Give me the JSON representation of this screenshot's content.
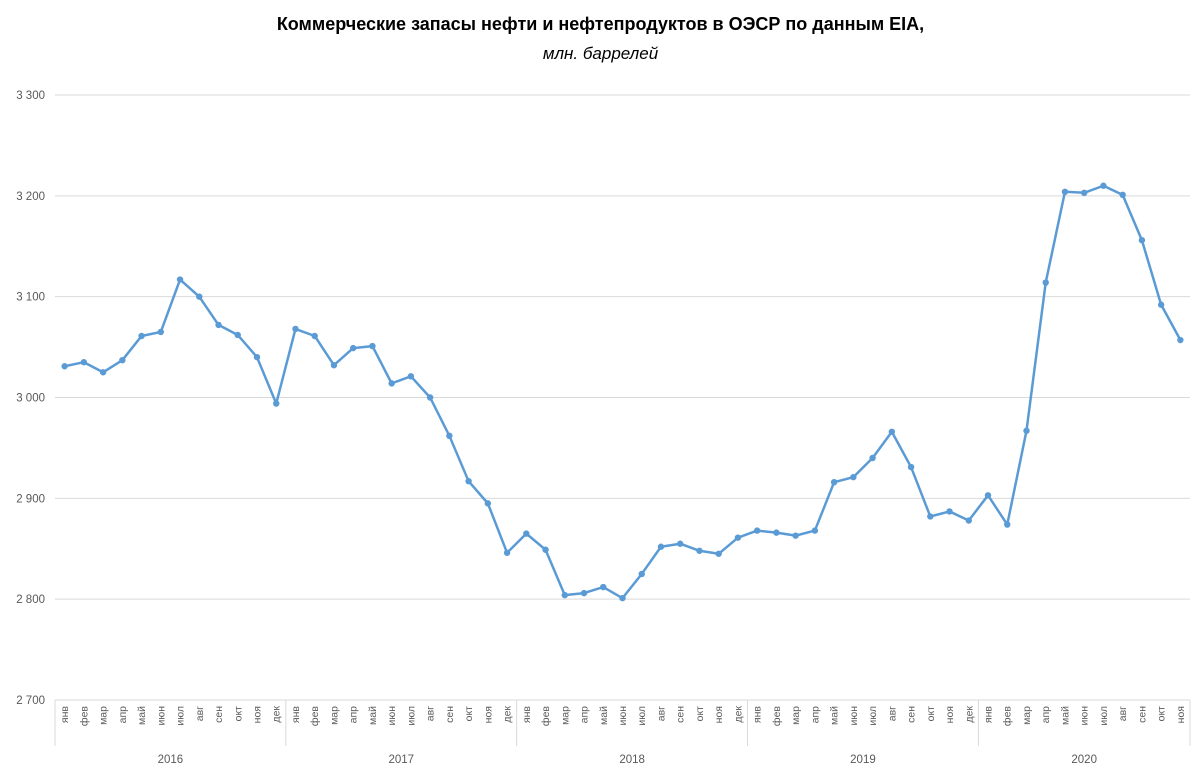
{
  "title": "Коммерческие запасы нефти и нефтепродуктов в ОЭСР по данным EIA,",
  "subtitle": "млн. баррелей",
  "chart_data": {
    "type": "line",
    "title": "Коммерческие запасы нефти и нефтепродуктов в ОЭСР по данным EIA, млн. баррелей",
    "xlabel": "",
    "ylabel": "",
    "ylim": [
      2700,
      3300
    ],
    "grid": true,
    "legend": "none",
    "month_labels": [
      "янв",
      "фев",
      "мар",
      "апр",
      "май",
      "июн",
      "июл",
      "авг",
      "сен",
      "окт",
      "ноя",
      "дек"
    ],
    "years": [
      {
        "label": "2016",
        "months": 12
      },
      {
        "label": "2017",
        "months": 12
      },
      {
        "label": "2018",
        "months": 12
      },
      {
        "label": "2019",
        "months": 12
      },
      {
        "label": "2020",
        "months": 11
      }
    ],
    "ytick_values": [
      2700,
      2800,
      2900,
      3000,
      3100,
      3200,
      3300
    ],
    "ytick_labels": [
      "2 700",
      "2 800",
      "2 900",
      "3 000",
      "3 100",
      "3 200",
      "3 300"
    ],
    "series": [
      {
        "name": "Коммерческие запасы нефти и нефтепродуктов в ОЭСР",
        "values": [
          3031,
          3035,
          3025,
          3037,
          3061,
          3065,
          3117,
          3100,
          3072,
          3062,
          3040,
          2994,
          3068,
          3061,
          3032,
          3049,
          3051,
          3014,
          3021,
          3000,
          2962,
          2917,
          2895,
          2846,
          2865,
          2849,
          2804,
          2806,
          2812,
          2801,
          2825,
          2852,
          2855,
          2848,
          2845,
          2861,
          2868,
          2866,
          2863,
          2868,
          2916,
          2921,
          2940,
          2966,
          2931,
          2882,
          2887,
          2878,
          2903,
          2874,
          2967,
          3114,
          3204,
          3203,
          3210,
          3201,
          3156,
          3092,
          3057
        ]
      }
    ],
    "colors": {
      "line": "#5B9BD5",
      "marker": "#5B9BD5",
      "grid": "#D9D9D9",
      "separator": "#D9D9D9",
      "axis_text": "#595959",
      "title_text": "#000000"
    }
  }
}
